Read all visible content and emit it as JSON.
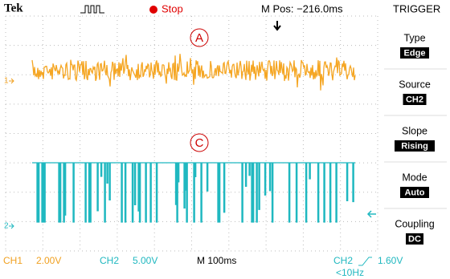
{
  "header": {
    "brand": "Tek",
    "state": "Stop",
    "position": "M Pos: −216.0ms",
    "menu_title": "TRIGGER"
  },
  "markers": {
    "trace_a": "A",
    "trace_c": "C",
    "ch1": "1",
    "ch2": "2"
  },
  "menu": [
    {
      "label": "Type",
      "value": "Edge"
    },
    {
      "label": "Source",
      "value": "CH2"
    },
    {
      "label": "Slope",
      "value": "Rising"
    },
    {
      "label": "Mode",
      "value": "Auto"
    },
    {
      "label": "Coupling",
      "value": "DC"
    }
  ],
  "footer": {
    "ch1": "CH1",
    "ch1_scale": "2.00V",
    "ch2": "CH2",
    "ch2_scale": "5.00V",
    "timebase": "M 100ms",
    "trigger_source": "CH2",
    "trigger_level": "1.60V",
    "trigger_freq": "<10Hz"
  }
}
